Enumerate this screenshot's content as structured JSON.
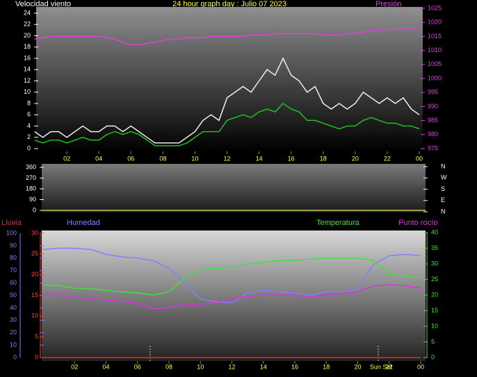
{
  "chart_data": [
    {
      "type": "line",
      "title": "24 hour graph day : Julio 07 2023",
      "ylabel": "Velocidad viento",
      "x": [
        0,
        0.5,
        1,
        1.5,
        2,
        2.5,
        3,
        3.5,
        4,
        4.5,
        5,
        5.5,
        6,
        6.5,
        7,
        7.5,
        8,
        8.5,
        9,
        9.5,
        10,
        10.5,
        11,
        11.5,
        12,
        12.5,
        13,
        13.5,
        14,
        14.5,
        15,
        15.5,
        16,
        16.5,
        17,
        17.5,
        18,
        18.5,
        19,
        19.5,
        20,
        20.5,
        21,
        21.5,
        22,
        22.5,
        23,
        23.5,
        24
      ],
      "xlim": [
        0,
        24
      ],
      "xticks": [
        {
          "value": 2,
          "label": "02"
        },
        {
          "value": 4,
          "label": "04"
        },
        {
          "value": 6,
          "label": "06"
        },
        {
          "value": 8,
          "label": "08"
        },
        {
          "value": 10,
          "label": "10"
        },
        12,
        14,
        16,
        18,
        20,
        22,
        {
          "value": 24,
          "label": "00"
        }
      ],
      "ylim": [
        0,
        24
      ],
      "yticks": [
        0,
        2,
        4,
        6,
        8,
        10,
        12,
        14,
        16,
        18,
        20,
        22,
        24
      ],
      "y2lim": [
        975,
        1025
      ],
      "y2ticks": [
        975,
        980,
        985,
        990,
        995,
        1000,
        1005,
        1010,
        1015,
        1020,
        1025
      ],
      "series": [
        {
          "color": "#f0f0f0",
          "values": [
            3,
            2,
            3,
            3,
            2,
            3,
            4,
            3,
            3,
            4,
            4,
            3,
            4,
            3,
            2,
            1,
            1,
            1,
            1,
            2,
            3,
            5,
            6,
            5,
            9,
            10,
            11,
            10,
            12,
            14,
            13,
            16,
            13,
            12,
            10,
            11,
            8,
            7,
            8,
            7,
            8,
            10,
            9,
            8,
            9,
            8,
            9,
            7,
            6
          ]
        },
        {
          "color": "#20c020",
          "values": [
            1.5,
            1,
            1.5,
            1.5,
            1,
            1.5,
            2,
            1.5,
            1.5,
            2.5,
            3,
            2.5,
            3,
            2.5,
            1.5,
            0.5,
            0.5,
            0.5,
            0.5,
            1,
            2,
            3,
            3,
            3,
            5,
            5.5,
            6,
            5.5,
            6.5,
            7,
            6.5,
            8,
            7,
            6.5,
            5,
            5,
            4.5,
            4,
            3.5,
            4,
            4,
            5,
            5.5,
            5,
            4.5,
            4.5,
            4,
            4,
            3.5
          ]
        },
        {
          "name": "Presión",
          "color": "#e040e0",
          "axis": "y2",
          "values": [
            1014,
            1014.5,
            1015,
            1015,
            1015,
            1015,
            1015,
            1015,
            1015,
            1014.5,
            1014,
            1013,
            1012,
            1012,
            1012.5,
            1013,
            1013.5,
            1014,
            1014,
            1014.5,
            1014.5,
            1014.5,
            1015,
            1015,
            1015,
            1015,
            1015,
            1015.5,
            1015.5,
            1015.5,
            1016,
            1016,
            1016,
            1016,
            1016,
            1016,
            1015.5,
            1015.5,
            1015.5,
            1016,
            1016,
            1016.5,
            1017,
            1017,
            1017.5,
            1017.5,
            1018,
            1018,
            1018
          ]
        }
      ]
    },
    {
      "type": "line",
      "x": [
        0,
        24
      ],
      "xlim": [
        0,
        24
      ],
      "ylim": [
        0,
        360
      ],
      "yticks": [
        0,
        90,
        180,
        270,
        360
      ],
      "y2lim": [
        0,
        360
      ],
      "y2ticks": [
        {
          "value": 360,
          "label": "N"
        },
        {
          "value": 270,
          "label": "W"
        },
        {
          "value": 180,
          "label": "S"
        },
        {
          "value": 90,
          "label": "E"
        },
        {
          "value": 0,
          "label": "N"
        }
      ],
      "series": [
        {
          "color": "#c8c850",
          "values": [
            0,
            0
          ]
        }
      ]
    },
    {
      "type": "line",
      "x": [
        0,
        1,
        2,
        3,
        4,
        5,
        6,
        7,
        8,
        9,
        10,
        11,
        12,
        13,
        14,
        15,
        16,
        17,
        18,
        19,
        20,
        21,
        22,
        23,
        24
      ],
      "xlim": [
        0,
        24
      ],
      "xticks": [
        {
          "value": 2,
          "label": "02"
        },
        {
          "value": 4,
          "label": "04"
        },
        {
          "value": 6,
          "label": "06"
        },
        {
          "value": 8,
          "label": "08"
        },
        {
          "value": 10,
          "label": "10"
        },
        12,
        14,
        16,
        18,
        20,
        22,
        {
          "value": 24,
          "label": "00"
        }
      ],
      "ylim": [
        0,
        100
      ],
      "yticks": [
        0,
        10,
        20,
        30,
        40,
        50,
        60,
        70,
        80,
        90,
        100
      ],
      "y3lim": [
        0,
        30
      ],
      "y3ticks": [
        0,
        5,
        10,
        15,
        20,
        25,
        30
      ],
      "y2lim": [
        0,
        40
      ],
      "y2ticks": [
        0,
        5,
        10,
        15,
        20,
        25,
        30,
        35,
        40
      ],
      "sun_events": [
        6.8,
        21.3
      ],
      "annotation": {
        "text": "Sun Set",
        "x": 21.3
      },
      "series": [
        {
          "name": "Lluvia",
          "color": "#ff2020",
          "axis": "y3",
          "values": [
            0,
            0,
            0,
            0,
            0,
            0,
            0,
            0,
            0,
            0,
            0,
            0,
            0,
            0,
            0,
            0,
            0,
            0,
            0,
            0,
            0,
            0,
            0,
            0,
            0
          ]
        },
        {
          "name": "Humedad",
          "color": "#8080ff",
          "axis": "y",
          "values": [
            87,
            88,
            88,
            87,
            83,
            81,
            80,
            78,
            72,
            60,
            47,
            45,
            44,
            52,
            54,
            53,
            52,
            50,
            53,
            53,
            55,
            75,
            82,
            83,
            82
          ]
        },
        {
          "name": "Temperatura",
          "color": "#40e040",
          "axis": "y2",
          "values": [
            23.3,
            23,
            22.2,
            22,
            21.5,
            21,
            20.7,
            20,
            21,
            25.5,
            28.2,
            28.5,
            28.9,
            30,
            30.5,
            31.1,
            31.1,
            31.5,
            31.8,
            31.8,
            31.8,
            31,
            26.7,
            26,
            25.5
          ]
        },
        {
          "name": "Punto rocío",
          "color": "#e030e0",
          "axis": "y2",
          "values": [
            20.7,
            20,
            19.3,
            19,
            18.4,
            18,
            17.3,
            15.6,
            16,
            17.1,
            17.1,
            17.6,
            18.9,
            19.6,
            20,
            20,
            20,
            19.3,
            20.2,
            20.5,
            21.1,
            22.9,
            23.3,
            23,
            22.2
          ]
        }
      ]
    }
  ]
}
